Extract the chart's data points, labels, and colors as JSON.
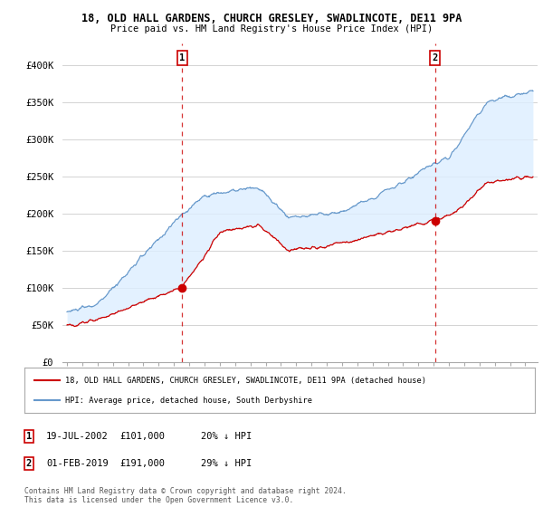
{
  "title_line1": "18, OLD HALL GARDENS, CHURCH GRESLEY, SWADLINCOTE, DE11 9PA",
  "title_line2": "Price paid vs. HM Land Registry's House Price Index (HPI)",
  "legend_label_red": "18, OLD HALL GARDENS, CHURCH GRESLEY, SWADLINCOTE, DE11 9PA (detached house)",
  "legend_label_blue": "HPI: Average price, detached house, South Derbyshire",
  "transaction1_date": "19-JUL-2002",
  "transaction1_price": 101000,
  "transaction1_pct": "20% ↓ HPI",
  "transaction2_date": "01-FEB-2019",
  "transaction2_price": 191000,
  "transaction2_pct": "29% ↓ HPI",
  "footnote": "Contains HM Land Registry data © Crown copyright and database right 2024.\nThis data is licensed under the Open Government Licence v3.0.",
  "ylabel_ticks": [
    "£0",
    "£50K",
    "£100K",
    "£150K",
    "£200K",
    "£250K",
    "£300K",
    "£350K",
    "£400K"
  ],
  "ytick_values": [
    0,
    50000,
    100000,
    150000,
    200000,
    250000,
    300000,
    350000,
    400000
  ],
  "ylim": [
    0,
    430000
  ],
  "xlim_start": 1994.7,
  "xlim_end": 2025.8,
  "vline1_x": 2002.54,
  "vline2_x": 2019.08,
  "dot1_x": 2002.54,
  "dot1_y": 101000,
  "dot2_x": 2019.08,
  "dot2_y": 191000,
  "background_color": "#ffffff",
  "grid_color": "#cccccc",
  "red_color": "#cc0000",
  "blue_color": "#6699cc",
  "fill_color": "#ddeeff"
}
